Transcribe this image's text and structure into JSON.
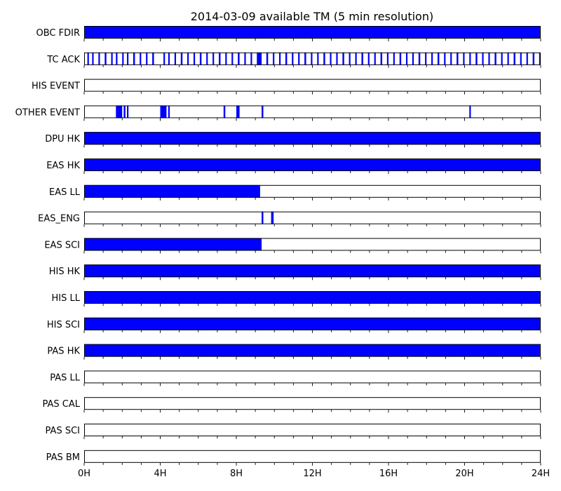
{
  "chart_data": {
    "type": "timeline-availability",
    "title": "2014-03-09 available TM (5 min resolution)",
    "x_unit": "hours",
    "xlim": [
      0,
      24
    ],
    "x_ticks": [
      0,
      4,
      8,
      12,
      16,
      20,
      24
    ],
    "x_tick_labels": [
      "0H",
      "4H",
      "8H",
      "12H",
      "16H",
      "20H",
      "24H"
    ],
    "minor_tick_step_hours": 1,
    "fill_color": "#0000ff",
    "rows": [
      {
        "label": "OBC FDIR",
        "intervals": [
          [
            0,
            24
          ]
        ]
      },
      {
        "label": "TC ACK",
        "intervals": [
          [
            0.17,
            0.25
          ],
          [
            0.42,
            0.5
          ],
          [
            0.75,
            0.83
          ],
          [
            1.08,
            1.17
          ],
          [
            1.42,
            1.5
          ],
          [
            1.67,
            1.75
          ],
          [
            2.0,
            2.08
          ],
          [
            2.25,
            2.33
          ],
          [
            2.58,
            2.67
          ],
          [
            2.92,
            3.0
          ],
          [
            3.25,
            3.33
          ],
          [
            3.58,
            3.67
          ],
          [
            4.17,
            4.25
          ],
          [
            4.42,
            4.5
          ],
          [
            4.75,
            4.83
          ],
          [
            5.08,
            5.17
          ],
          [
            5.42,
            5.5
          ],
          [
            5.75,
            5.83
          ],
          [
            6.08,
            6.17
          ],
          [
            6.42,
            6.5
          ],
          [
            6.75,
            6.83
          ],
          [
            7.08,
            7.17
          ],
          [
            7.42,
            7.5
          ],
          [
            7.75,
            7.83
          ],
          [
            8.08,
            8.17
          ],
          [
            8.42,
            8.5
          ],
          [
            8.75,
            8.83
          ],
          [
            9.08,
            9.33
          ],
          [
            9.58,
            9.67
          ],
          [
            9.92,
            10.0
          ],
          [
            10.25,
            10.33
          ],
          [
            10.58,
            10.67
          ],
          [
            10.92,
            11.0
          ],
          [
            11.25,
            11.33
          ],
          [
            11.58,
            11.67
          ],
          [
            11.92,
            12.0
          ],
          [
            12.25,
            12.33
          ],
          [
            12.58,
            12.67
          ],
          [
            12.92,
            13.0
          ],
          [
            13.25,
            13.33
          ],
          [
            13.58,
            13.67
          ],
          [
            13.92,
            14.0
          ],
          [
            14.25,
            14.33
          ],
          [
            14.58,
            14.67
          ],
          [
            14.92,
            15.0
          ],
          [
            15.25,
            15.33
          ],
          [
            15.58,
            15.67
          ],
          [
            15.92,
            16.0
          ],
          [
            16.25,
            16.33
          ],
          [
            16.58,
            16.67
          ],
          [
            16.92,
            17.0
          ],
          [
            17.25,
            17.33
          ],
          [
            17.58,
            17.67
          ],
          [
            17.92,
            18.0
          ],
          [
            18.25,
            18.33
          ],
          [
            18.58,
            18.67
          ],
          [
            18.92,
            19.0
          ],
          [
            19.25,
            19.33
          ],
          [
            19.58,
            19.67
          ],
          [
            19.92,
            20.0
          ],
          [
            20.25,
            20.33
          ],
          [
            20.58,
            20.67
          ],
          [
            20.92,
            21.0
          ],
          [
            21.25,
            21.33
          ],
          [
            21.58,
            21.67
          ],
          [
            21.92,
            22.0
          ],
          [
            22.25,
            22.33
          ],
          [
            22.58,
            22.67
          ],
          [
            22.92,
            23.0
          ],
          [
            23.25,
            23.33
          ],
          [
            23.58,
            23.67
          ],
          [
            23.92,
            24.0
          ]
        ]
      },
      {
        "label": "HIS EVENT",
        "intervals": []
      },
      {
        "label": "OTHER EVENT",
        "intervals": [
          [
            1.67,
            2.0
          ],
          [
            2.08,
            2.17
          ],
          [
            2.25,
            2.33
          ],
          [
            4.0,
            4.33
          ],
          [
            4.42,
            4.5
          ],
          [
            7.33,
            7.42
          ],
          [
            8.0,
            8.17
          ],
          [
            9.33,
            9.42
          ],
          [
            20.25,
            20.33
          ]
        ]
      },
      {
        "label": "DPU HK",
        "intervals": [
          [
            0,
            24
          ]
        ]
      },
      {
        "label": "EAS HK",
        "intervals": [
          [
            0,
            24
          ]
        ]
      },
      {
        "label": "EAS LL",
        "intervals": [
          [
            0,
            9.25
          ]
        ]
      },
      {
        "label": "EAS_ENG",
        "intervals": [
          [
            9.33,
            9.42
          ],
          [
            9.83,
            9.96
          ]
        ]
      },
      {
        "label": "EAS SCI",
        "intervals": [
          [
            0,
            9.33
          ]
        ]
      },
      {
        "label": "HIS HK",
        "intervals": [
          [
            0,
            24
          ]
        ]
      },
      {
        "label": "HIS LL",
        "intervals": [
          [
            0,
            24
          ]
        ]
      },
      {
        "label": "HIS SCI",
        "intervals": [
          [
            0,
            24
          ]
        ]
      },
      {
        "label": "PAS HK",
        "intervals": [
          [
            0,
            24
          ]
        ]
      },
      {
        "label": "PAS LL",
        "intervals": []
      },
      {
        "label": "PAS CAL",
        "intervals": []
      },
      {
        "label": "PAS SCI",
        "intervals": []
      },
      {
        "label": "PAS BM",
        "intervals": []
      }
    ]
  }
}
